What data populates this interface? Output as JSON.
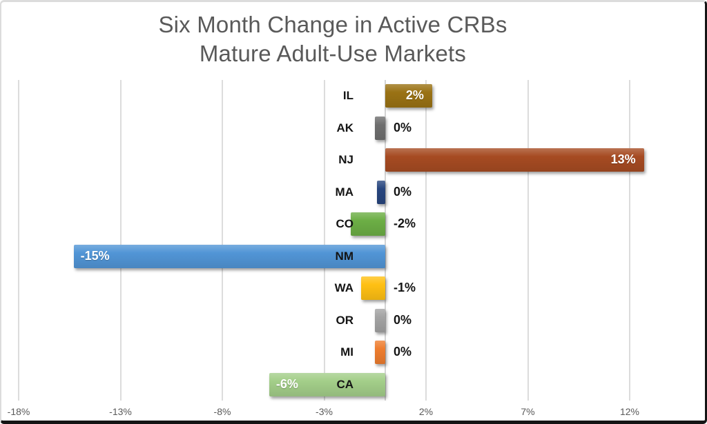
{
  "chart_data": {
    "type": "bar",
    "orientation": "horizontal",
    "title": "Six Month Change in Active CRBs",
    "subtitle": "Mature Adult-Use Markets",
    "categories": [
      "IL",
      "AK",
      "NJ",
      "MA",
      "CO",
      "NM",
      "WA",
      "OR",
      "MI",
      "CA"
    ],
    "values": [
      2,
      0,
      13,
      0,
      -2,
      -15,
      -1,
      0,
      0,
      -6
    ],
    "value_labels": [
      "2%",
      "0%",
      "13%",
      "0%",
      "-2%",
      "-15%",
      "-1%",
      "0%",
      "0%",
      "-6%"
    ],
    "bar_values": [
      2.3,
      -0.5,
      12.7,
      -0.4,
      -1.7,
      -15.3,
      -1.2,
      -0.5,
      -0.5,
      -5.7
    ],
    "label_inside": [
      true,
      false,
      true,
      false,
      false,
      true,
      false,
      false,
      false,
      true
    ],
    "bar_colors": [
      "#9A7214",
      "#6E6E6E",
      "#A64B22",
      "#27457E",
      "#6CAE45",
      "#5195D6",
      "#FFC013",
      "#A3A3A3",
      "#EE7D2F",
      "#A3CE89"
    ],
    "x_ticks": [
      "-18%",
      "-13%",
      "-8%",
      "-3%",
      "2%",
      "7%",
      "12%"
    ],
    "x_tick_values": [
      -18,
      -13,
      -8,
      -3,
      2,
      7,
      12
    ],
    "xlim": [
      -18.8,
      15.7
    ],
    "grid": true,
    "legend": "none",
    "title_color": "#595959",
    "axis_label_color": "#595959"
  }
}
